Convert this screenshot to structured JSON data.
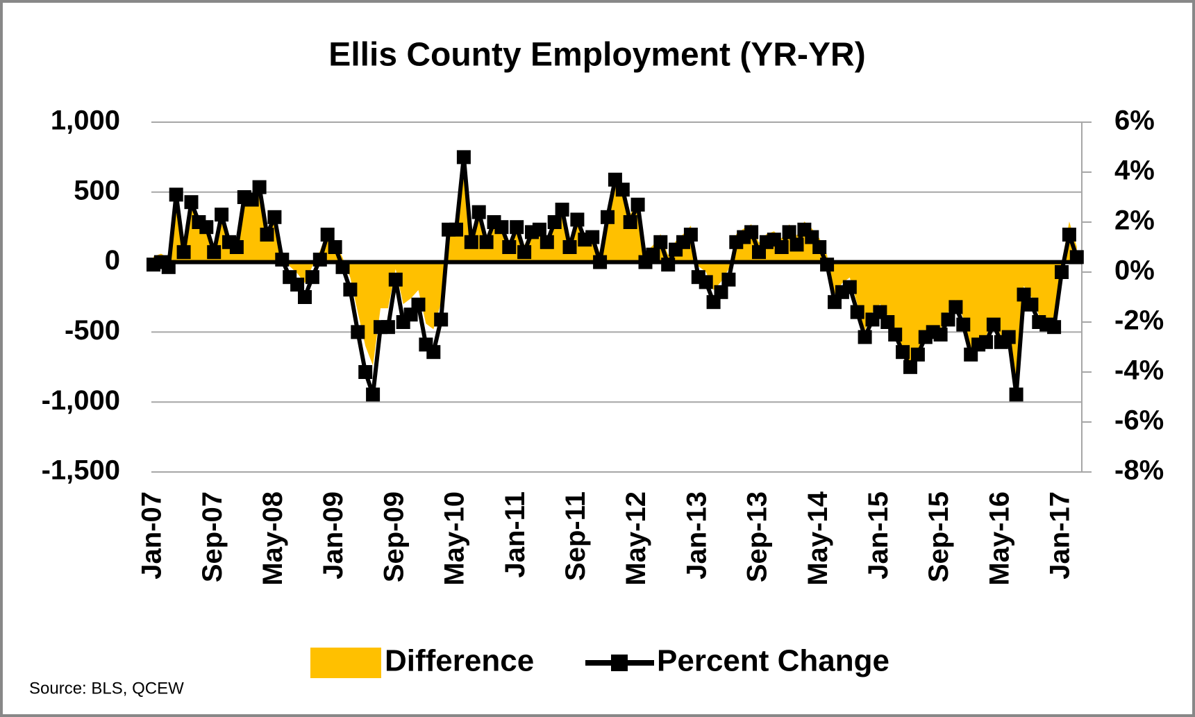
{
  "chart_data": {
    "type": "combo",
    "title": "Ellis County Employment (YR-YR)",
    "source": "Source: BLS, QCEW",
    "categories": [
      "Jan-07",
      null,
      null,
      null,
      null,
      null,
      null,
      null,
      "Sep-07",
      null,
      null,
      null,
      null,
      null,
      null,
      null,
      "May-08",
      null,
      null,
      null,
      null,
      null,
      null,
      null,
      "Jan-09",
      null,
      null,
      null,
      null,
      null,
      null,
      null,
      "Sep-09",
      null,
      null,
      null,
      null,
      null,
      null,
      null,
      "May-10",
      null,
      null,
      null,
      null,
      null,
      null,
      null,
      "Jan-11",
      null,
      null,
      null,
      null,
      null,
      null,
      null,
      "Sep-11",
      null,
      null,
      null,
      null,
      null,
      null,
      null,
      "May-12",
      null,
      null,
      null,
      null,
      null,
      null,
      null,
      "Jan-13",
      null,
      null,
      null,
      null,
      null,
      null,
      null,
      "Sep-13",
      null,
      null,
      null,
      null,
      null,
      null,
      null,
      "May-14",
      null,
      null,
      null,
      null,
      null,
      null,
      null,
      "Jan-15",
      null,
      null,
      null,
      null,
      null,
      null,
      null,
      "Sep-15",
      null,
      null,
      null,
      null,
      null,
      null,
      null,
      "May-16",
      null,
      null,
      null,
      null,
      null,
      null,
      null,
      "Jan-17",
      null,
      null
    ],
    "series": [
      {
        "name": "Difference",
        "type": "area",
        "color": "#ffc000",
        "values": [
          40,
          60,
          30,
          470,
          120,
          420,
          300,
          270,
          120,
          350,
          180,
          150,
          450,
          440,
          510,
          230,
          330,
          80,
          -30,
          -80,
          -150,
          -30,
          80,
          230,
          150,
          30,
          -110,
          -360,
          -600,
          -740,
          -330,
          -330,
          -50,
          -300,
          -260,
          -200,
          -440,
          -480,
          -290,
          260,
          260,
          690,
          180,
          360,
          180,
          300,
          270,
          150,
          270,
          120,
          240,
          260,
          180,
          300,
          380,
          150,
          320,
          200,
          210,
          60,
          370,
          630,
          560,
          340,
          460,
          70,
          120,
          200,
          50,
          150,
          200,
          260,
          -30,
          -70,
          -200,
          -140,
          -50,
          200,
          240,
          270,
          140,
          200,
          220,
          170,
          270,
          190,
          290,
          240,
          170,
          50,
          -230,
          -150,
          -110,
          -300,
          -490,
          -360,
          -300,
          -380,
          -480,
          -610,
          -720,
          -630,
          -490,
          -460,
          -480,
          -360,
          -270,
          -400,
          -630,
          -550,
          -530,
          -400,
          -530,
          -490,
          -930,
          -170,
          -250,
          -380,
          -400,
          -420,
          0,
          290,
          110
        ]
      },
      {
        "name": "Percent Change",
        "type": "line",
        "axis": "y2",
        "color": "#000000",
        "marker": "square",
        "values": [
          0.3,
          0.4,
          0.2,
          3.1,
          0.8,
          2.8,
          2.0,
          1.8,
          0.8,
          2.3,
          1.2,
          1.0,
          3.0,
          2.9,
          3.4,
          1.5,
          2.2,
          0.5,
          -0.2,
          -0.5,
          -1.0,
          -0.2,
          0.5,
          1.5,
          1.0,
          0.2,
          -0.7,
          -2.4,
          -4.0,
          -4.9,
          -2.2,
          -2.2,
          -0.3,
          -2.0,
          -1.7,
          -1.3,
          -2.9,
          -3.2,
          -1.9,
          1.7,
          1.7,
          4.6,
          1.2,
          2.4,
          1.2,
          2.0,
          1.8,
          1.0,
          1.8,
          0.8,
          1.6,
          1.7,
          1.2,
          2.0,
          2.5,
          1.0,
          2.1,
          1.3,
          1.4,
          0.4,
          2.2,
          3.7,
          3.3,
          2.0,
          2.7,
          0.4,
          0.7,
          1.2,
          0.3,
          0.9,
          1.2,
          1.5,
          -0.2,
          -0.4,
          -1.2,
          -0.8,
          -0.3,
          1.2,
          1.4,
          1.6,
          0.8,
          1.2,
          1.3,
          1.0,
          1.6,
          1.1,
          1.7,
          1.4,
          1.0,
          0.3,
          -1.2,
          -0.8,
          -0.6,
          -1.6,
          -2.6,
          -1.9,
          -1.6,
          -2.0,
          -2.5,
          -3.2,
          -3.8,
          -3.3,
          -2.6,
          -2.4,
          -2.5,
          -1.9,
          -1.4,
          -2.1,
          -3.3,
          -2.9,
          -2.8,
          -2.1,
          -2.8,
          -2.6,
          -4.9,
          -0.9,
          -1.3,
          -2.0,
          -2.1,
          -2.2,
          0.0,
          1.5,
          0.6
        ]
      }
    ],
    "ylim": [
      -1500,
      1000
    ],
    "yticks": [
      {
        "value": -1500,
        "label": "-1,500"
      },
      {
        "value": -1000,
        "label": "-1,000"
      },
      -500,
      0,
      500,
      {
        "value": 1000,
        "label": "1,000"
      }
    ],
    "y2lim": [
      -8,
      6
    ],
    "y2ticks": [
      {
        "value": -8,
        "label": "-8%"
      },
      {
        "value": -6,
        "label": "-6%"
      },
      {
        "value": -4,
        "label": "-4%"
      },
      {
        "value": -2,
        "label": "-2%"
      },
      {
        "value": 0,
        "label": "0%"
      },
      {
        "value": 2,
        "label": "2%"
      },
      {
        "value": 4,
        "label": "4%"
      },
      {
        "value": 6,
        "label": "6%"
      }
    ],
    "grid": true,
    "legend": "bottom"
  }
}
